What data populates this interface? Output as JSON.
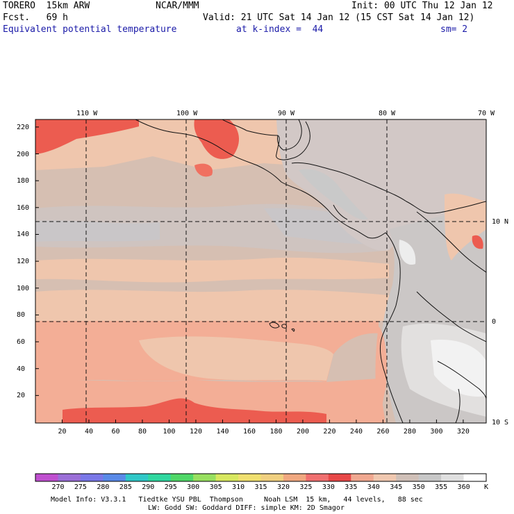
{
  "header": {
    "model": "TORERO  15km ARW",
    "org": "NCAR/MMM",
    "init": "Init: 00 UTC Thu 12 Jan 12",
    "fcst": "Fcst.   69 h",
    "valid": "Valid: 21 UTC Sat 14 Jan 12 (15 CST Sat 14 Jan 12)",
    "field": "Equivalent potential temperature",
    "level": "at k-index =  44",
    "smooth": "sm= 2"
  },
  "map": {
    "lon_labels": [
      "110 W",
      "100 W",
      "90 W",
      "80 W",
      "70 W"
    ],
    "lat_labels": [
      "10 N",
      "0",
      "10 S"
    ],
    "y_ticks": [
      "220",
      "200",
      "180",
      "160",
      "140",
      "120",
      "100",
      "80",
      "60",
      "40",
      "20"
    ],
    "x_ticks": [
      "20",
      "40",
      "60",
      "80",
      "100",
      "120",
      "140",
      "160",
      "180",
      "200",
      "220",
      "240",
      "260",
      "280",
      "300",
      "320"
    ]
  },
  "colorbar": {
    "labels": [
      "270",
      "275",
      "280",
      "285",
      "290",
      "295",
      "300",
      "305",
      "310",
      "315",
      "320",
      "325",
      "330",
      "335",
      "340",
      "345",
      "350",
      "355",
      "360"
    ],
    "unit": "K",
    "colors": [
      "#c050d0",
      "#9b6fd8",
      "#7a78e8",
      "#5a8ae8",
      "#30c8c8",
      "#30d8a0",
      "#50d868",
      "#98e060",
      "#d8e860",
      "#f0e070",
      "#f0d080",
      "#f0a880",
      "#f07070",
      "#e84848",
      "#f0a890",
      "#f0c8b0",
      "#d0c0b8",
      "#c8c8c8",
      "#e0e0e0",
      "#ffffff"
    ]
  },
  "footer": {
    "line1": "Model Info: V3.3.1   Tiedtke YSU PBL  Thompson     Noah LSM  15 km,   44 levels,   88 sec",
    "line2": "LW: Godd SW: Goddard DIFF: simple KM: 2D Smagor"
  }
}
